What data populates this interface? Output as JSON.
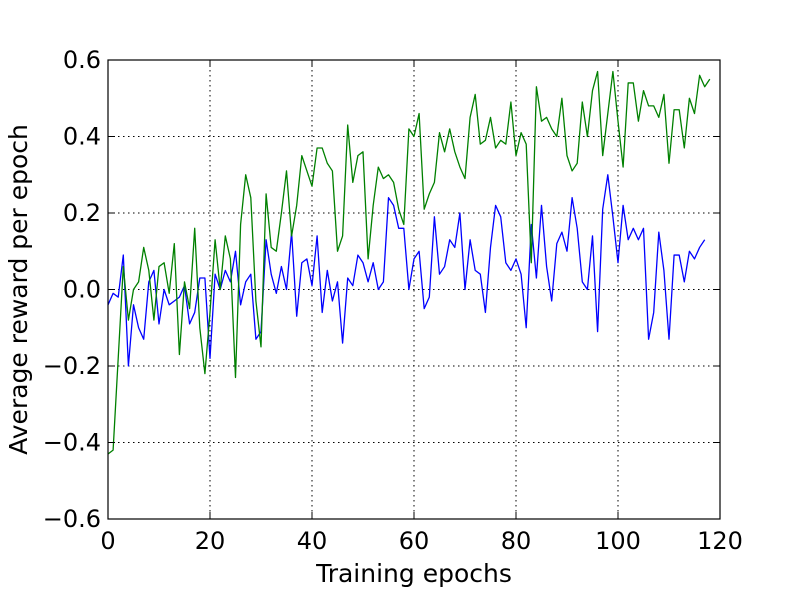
{
  "chart_data": {
    "type": "line",
    "title": "",
    "xlabel": "Training epochs",
    "ylabel": "Average reward per epoch",
    "xlim": [
      0,
      120
    ],
    "ylim": [
      -0.6,
      0.6
    ],
    "x_ticks": [
      0,
      20,
      40,
      60,
      80,
      100,
      120
    ],
    "x_tick_labels": [
      "0",
      "20",
      "40",
      "60",
      "80",
      "100",
      "120"
    ],
    "y_ticks": [
      -0.6,
      -0.4,
      -0.2,
      0.0,
      0.2,
      0.4,
      0.6
    ],
    "y_tick_labels": [
      "−0.6",
      "−0.4",
      "−0.2",
      "0.0",
      "0.2",
      "0.4",
      "0.6"
    ],
    "grid": true,
    "legend": "none",
    "series": [
      {
        "color": "#0000ff",
        "values": [
          -0.04,
          -0.01,
          -0.02,
          0.09,
          -0.2,
          -0.04,
          -0.1,
          -0.13,
          0.02,
          0.05,
          -0.09,
          0.0,
          -0.04,
          -0.03,
          -0.02,
          0.01,
          -0.09,
          -0.06,
          0.03,
          0.03,
          -0.18,
          0.04,
          0.0,
          0.05,
          0.02,
          0.1,
          -0.04,
          0.02,
          0.04,
          -0.13,
          -0.11,
          0.13,
          0.04,
          -0.01,
          0.06,
          0.0,
          0.15,
          -0.07,
          0.07,
          0.08,
          0.01,
          0.14,
          -0.06,
          0.05,
          -0.03,
          0.02,
          -0.14,
          0.03,
          0.01,
          0.09,
          0.07,
          0.02,
          0.07,
          0.0,
          0.02,
          0.24,
          0.22,
          0.16,
          0.16,
          0.0,
          0.08,
          0.1,
          -0.05,
          -0.02,
          0.19,
          0.04,
          0.06,
          0.13,
          0.11,
          0.2,
          0.0,
          0.13,
          0.05,
          0.04,
          -0.06,
          0.11,
          0.22,
          0.19,
          0.07,
          0.05,
          0.08,
          0.04,
          -0.1,
          0.17,
          0.03,
          0.22,
          0.06,
          -0.03,
          0.12,
          0.15,
          0.1,
          0.24,
          0.16,
          0.02,
          0.0,
          0.14,
          -0.11,
          0.21,
          0.3,
          0.19,
          0.07,
          0.22,
          0.13,
          0.16,
          0.13,
          0.16,
          -0.13,
          -0.06,
          0.15,
          0.05,
          -0.13,
          0.09,
          0.09,
          0.02,
          0.1,
          0.08,
          0.11,
          0.13
        ]
      },
      {
        "color": "#008000",
        "values": [
          -0.43,
          -0.42,
          -0.18,
          0.06,
          -0.08,
          0.0,
          0.02,
          0.11,
          0.05,
          -0.08,
          0.06,
          0.07,
          -0.01,
          0.12,
          -0.17,
          0.02,
          -0.05,
          0.16,
          -0.1,
          -0.22,
          -0.06,
          0.13,
          0.0,
          0.14,
          0.08,
          -0.23,
          0.17,
          0.3,
          0.24,
          -0.03,
          -0.15,
          0.25,
          0.11,
          0.1,
          0.2,
          0.31,
          0.14,
          0.22,
          0.35,
          0.31,
          0.27,
          0.37,
          0.37,
          0.33,
          0.31,
          0.1,
          0.14,
          0.43,
          0.28,
          0.35,
          0.36,
          0.08,
          0.22,
          0.32,
          0.29,
          0.3,
          0.28,
          0.21,
          0.17,
          0.42,
          0.4,
          0.46,
          0.21,
          0.25,
          0.28,
          0.41,
          0.36,
          0.42,
          0.36,
          0.32,
          0.29,
          0.45,
          0.51,
          0.38,
          0.39,
          0.45,
          0.37,
          0.39,
          0.38,
          0.49,
          0.35,
          0.41,
          0.38,
          0.07,
          0.53,
          0.44,
          0.45,
          0.42,
          0.4,
          0.5,
          0.35,
          0.31,
          0.33,
          0.49,
          0.4,
          0.52,
          0.57,
          0.35,
          0.46,
          0.57,
          0.44,
          0.32,
          0.54,
          0.54,
          0.44,
          0.52,
          0.48,
          0.48,
          0.45,
          0.51,
          0.33,
          0.47,
          0.47,
          0.37,
          0.5,
          0.46,
          0.56,
          0.53,
          0.55
        ]
      }
    ]
  }
}
